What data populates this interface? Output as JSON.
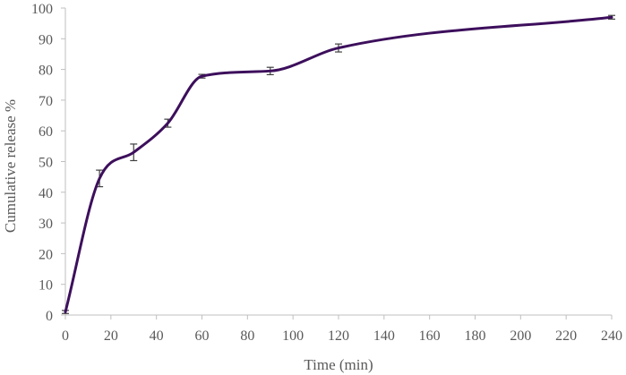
{
  "chart_data": {
    "type": "line",
    "title": "",
    "xlabel": "Time (min)",
    "ylabel": "Cumulative release  %",
    "xlim": [
      0,
      240
    ],
    "ylim": [
      0,
      100
    ],
    "xticks": [
      0,
      20,
      40,
      60,
      80,
      100,
      120,
      140,
      160,
      180,
      200,
      220,
      240
    ],
    "yticks": [
      0,
      10,
      20,
      30,
      40,
      50,
      60,
      70,
      80,
      90,
      100
    ],
    "grid": false,
    "legend": "none",
    "smooth": true,
    "series": [
      {
        "x": [
          0,
          15,
          30,
          45,
          60,
          90,
          120,
          240
        ],
        "y": [
          1,
          44.5,
          53,
          62.5,
          77.8,
          79.5,
          87,
          97
        ],
        "error": [
          0.5,
          2.7,
          2.7,
          1.3,
          0.6,
          1.2,
          1.3,
          0.6
        ],
        "color": "#3d0f5c"
      }
    ]
  }
}
